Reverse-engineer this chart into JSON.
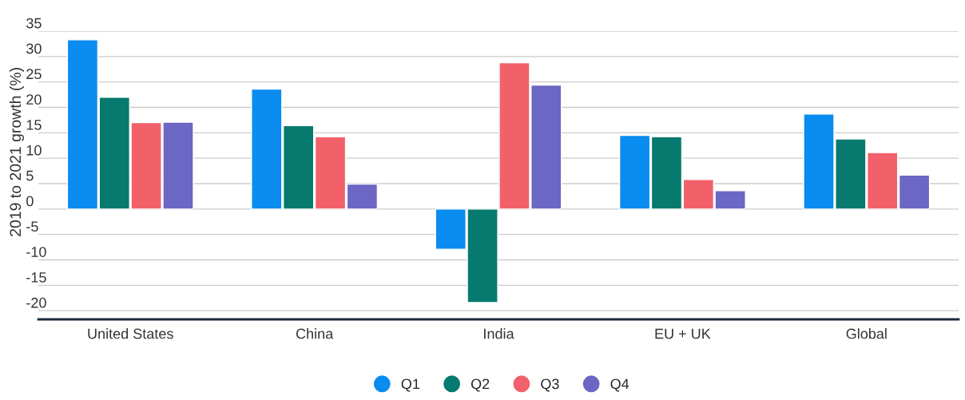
{
  "chart_data": {
    "type": "bar",
    "ylabel": "2019 to 2021 growth (%)",
    "categories": [
      "United States",
      "China",
      "India",
      "EU + UK",
      "Global"
    ],
    "series": [
      {
        "name": "Q1",
        "color": "#0a8cf0",
        "values": [
          33.3,
          23.6,
          -7.9,
          14.5,
          18.7
        ]
      },
      {
        "name": "Q2",
        "color": "#067a6e",
        "values": [
          22.0,
          16.4,
          -18.4,
          14.2,
          13.8
        ]
      },
      {
        "name": "Q3",
        "color": "#f2616a",
        "values": [
          17.0,
          14.2,
          28.8,
          5.8,
          11.1
        ]
      },
      {
        "name": "Q4",
        "color": "#6c66c4",
        "values": [
          17.1,
          4.9,
          24.4,
          3.6,
          6.7
        ]
      }
    ],
    "ylim": [
      -21.7,
      35
    ],
    "yticks": [
      -20,
      -15,
      -10,
      -5,
      0,
      5,
      10,
      15,
      20,
      25,
      30,
      35
    ],
    "grid": "y",
    "legend": "bottom"
  }
}
